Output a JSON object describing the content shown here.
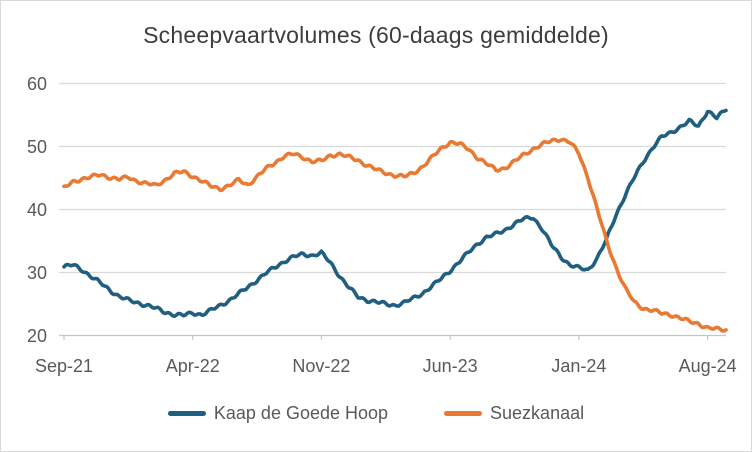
{
  "window": {
    "background": "#ffffff",
    "border_color": "#d9d9d9"
  },
  "chart": {
    "title": "Scheepvaartvolumes (60-daags gemiddelde)",
    "title_color": "#3d3d3d",
    "axis_label_color": "#595959",
    "gridline_color": "#d9d9d9",
    "axis_line_color": "#c6c6c6"
  },
  "chart_data": {
    "type": "line",
    "title": "Scheepvaartvolumes (60-daags gemiddelde)",
    "xlabel": "",
    "ylabel": "",
    "ylim": [
      20,
      60
    ],
    "y_ticks": [
      20,
      30,
      40,
      50,
      60
    ],
    "grid": "horizontal",
    "legend_position": "bottom",
    "x_unit": "months since Sep-2021, sampled every half month",
    "x_range_months": [
      0,
      36
    ],
    "x_tick_labels": [
      "Sep-21",
      "Apr-22",
      "Nov-22",
      "Jun-23",
      "Jan-24",
      "Aug-24"
    ],
    "x_tick_positions_months": [
      0,
      7,
      14,
      21,
      28,
      35
    ],
    "series": [
      {
        "name": "Kaap de Goede Hoop",
        "color": "#205f7f",
        "values": [
          30.9,
          31.2,
          30.4,
          29.3,
          28.3,
          27.2,
          26.2,
          25.6,
          25.2,
          24.8,
          24.3,
          23.7,
          23.3,
          23.2,
          23.6,
          23.3,
          24.0,
          24.8,
          25.6,
          26.6,
          27.7,
          28.8,
          29.9,
          30.9,
          31.8,
          32.5,
          32.9,
          32.7,
          33.1,
          31.5,
          29.4,
          27.6,
          26.1,
          25.6,
          25.3,
          25.0,
          24.8,
          25.2,
          25.9,
          26.7,
          27.8,
          29.0,
          30.3,
          31.7,
          33.2,
          34.6,
          35.6,
          36.1,
          36.8,
          37.7,
          38.5,
          38.8,
          36.9,
          34.4,
          32.6,
          31.2,
          30.7,
          30.4,
          32.3,
          35.2,
          39.0,
          42.2,
          45.0,
          47.6,
          49.8,
          51.5,
          52.2,
          53.1,
          54.0,
          53.2,
          55.7,
          54.5,
          55.9
        ]
      },
      {
        "name": "Suezkanaal",
        "color": "#e87a33",
        "values": [
          43.4,
          44.4,
          44.9,
          45.2,
          45.5,
          45.1,
          44.8,
          45.1,
          44.5,
          44.1,
          43.8,
          44.7,
          45.7,
          46.0,
          45.3,
          44.5,
          43.7,
          43.3,
          43.8,
          44.7,
          43.9,
          45.2,
          46.5,
          47.5,
          48.5,
          48.8,
          48.3,
          47.6,
          47.7,
          48.6,
          48.8,
          48.3,
          47.8,
          47.0,
          46.3,
          45.8,
          45.4,
          45.2,
          45.8,
          46.8,
          48.2,
          49.7,
          50.7,
          50.4,
          49.6,
          48.2,
          47.2,
          46.3,
          46.6,
          47.6,
          48.7,
          49.6,
          50.3,
          50.9,
          51.2,
          50.7,
          48.9,
          45.0,
          40.0,
          35.0,
          31.0,
          27.6,
          25.3,
          24.3,
          24.0,
          23.5,
          23.3,
          22.8,
          22.2,
          21.9,
          21.2,
          21.0,
          20.9
        ]
      }
    ]
  }
}
